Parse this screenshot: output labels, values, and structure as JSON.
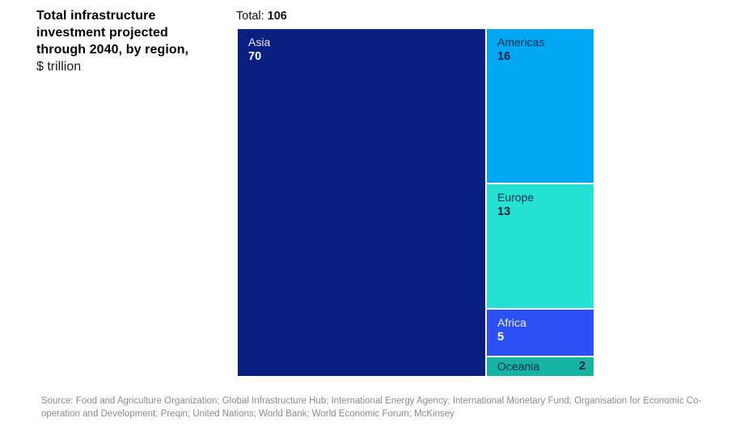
{
  "title": {
    "bold_lines": [
      "Total infrastructure",
      "investment projected",
      "through 2040, by region,"
    ],
    "unit": "$ trillion"
  },
  "total": {
    "label": "Total:",
    "value": "106"
  },
  "chart_data": {
    "type": "treemap",
    "title": "Total infrastructure investment projected through 2040, by region, $ trillion",
    "total": 106,
    "unit": "$ trillion",
    "layout_hint": "Asia fills left column full height; Americas, Europe, Africa, Oceania stacked top-to-bottom in right column",
    "regions": [
      {
        "name": "Asia",
        "value": 70,
        "color": "#0a2080",
        "text_color": "#ffffff"
      },
      {
        "name": "Americas",
        "value": 16,
        "color": "#00a8f3",
        "text_color": "#06203a"
      },
      {
        "name": "Europe",
        "value": 13,
        "color": "#24e2d3",
        "text_color": "#06203a"
      },
      {
        "name": "Africa",
        "value": 5,
        "color": "#2b51f6",
        "text_color": "#ffffff"
      },
      {
        "name": "Oceania",
        "value": 2,
        "color": "#14b3a2",
        "text_color": "#06203a"
      }
    ]
  },
  "source": "Source: Food and Agriculture Organization; Global Infrastructure Hub; International Energy Agency; International Monetary Fund; Organisation for Economic Co-operation and Development; Preqin; United Nations; World Bank; World Economic Forum; McKinsey"
}
